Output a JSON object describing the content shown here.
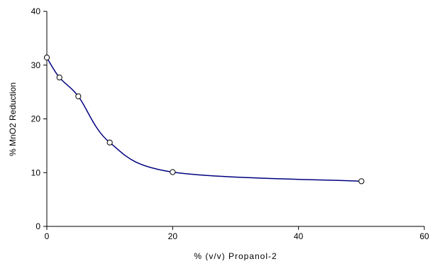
{
  "chart_data": {
    "type": "line",
    "title": "",
    "xlabel": "% (v/v) Propanol-2",
    "ylabel": "% MnO2 Reduction",
    "xlim": [
      0,
      60
    ],
    "ylim": [
      0,
      40
    ],
    "x_ticks": [
      0,
      20,
      40,
      60
    ],
    "y_ticks": [
      0,
      10,
      20,
      30,
      40
    ],
    "x_tick_labels": [
      "0",
      "20",
      "40",
      "60"
    ],
    "y_tick_labels": [
      "0",
      "10",
      "20",
      "30",
      "40"
    ],
    "grid": false,
    "legend": "none",
    "series": [
      {
        "x": [
          0,
          2,
          5,
          10,
          20,
          50
        ],
        "y": [
          31.4,
          27.7,
          24.2,
          15.6,
          10.1,
          8.4
        ],
        "color": "#000080",
        "marker": "open-circle",
        "smooth": true
      }
    ]
  }
}
